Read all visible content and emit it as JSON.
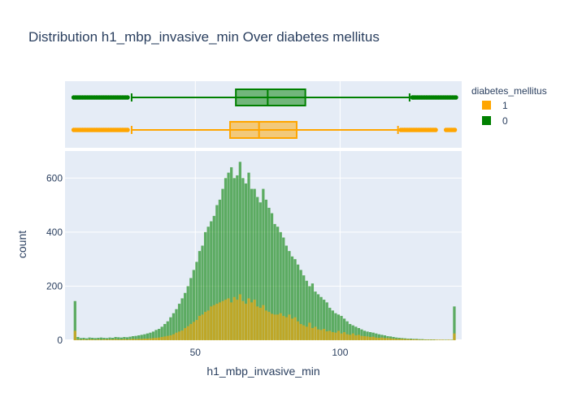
{
  "chart_data": {
    "type": "histogram",
    "title": "Distribution h1_mbp_invasive_min Over diabetes mellitus",
    "xlabel": "h1_mbp_invasive_min",
    "ylabel": "count",
    "xlim": [
      5,
      142
    ],
    "ylim": [
      0,
      700
    ],
    "x_ticks": [
      50,
      100
    ],
    "y_ticks": [
      0,
      200,
      400,
      600
    ],
    "barmode": "overlay",
    "legend": {
      "title": "diabetes_mellitus",
      "placement": "top-right"
    },
    "bin_start": 8,
    "bin_width": 1,
    "series": [
      {
        "name": "1",
        "color": "#FFA500",
        "values": [
          35,
          3,
          2,
          3,
          2,
          3,
          3,
          2,
          3,
          2,
          3,
          3,
          3,
          3,
          4,
          3,
          3,
          4,
          3,
          4,
          5,
          4,
          5,
          5,
          6,
          6,
          7,
          8,
          9,
          10,
          12,
          14,
          16,
          18,
          22,
          28,
          32,
          36,
          45,
          52,
          60,
          68,
          75,
          90,
          95,
          105,
          110,
          125,
          130,
          135,
          140,
          145,
          150,
          155,
          140,
          160,
          150,
          170,
          145,
          135,
          155,
          140,
          150,
          125,
          120,
          130,
          110,
          105,
          98,
          95,
          95,
          100,
          90,
          85,
          95,
          80,
          85,
          70,
          60,
          55,
          50,
          65,
          45,
          50,
          40,
          38,
          42,
          33,
          35,
          30,
          28,
          35,
          25,
          30,
          22,
          20,
          25,
          18,
          20,
          16,
          15,
          14,
          12,
          13,
          10,
          9,
          10,
          8,
          8,
          7,
          6,
          5,
          5,
          5,
          4,
          4,
          3,
          3,
          3,
          2,
          2,
          2,
          2,
          2,
          2,
          2,
          2,
          2,
          1,
          2,
          1,
          25
        ],
        "box": {
          "min": 28,
          "q1": 62,
          "median": 72,
          "q3": 85,
          "max": 120,
          "outliers_low": [
            8,
            27
          ],
          "outliers_high": [
            121,
            140
          ]
        }
      },
      {
        "name": "0",
        "color": "#008000",
        "values": [
          145,
          12,
          8,
          9,
          7,
          10,
          9,
          8,
          9,
          10,
          9,
          8,
          10,
          9,
          12,
          11,
          10,
          12,
          11,
          13,
          15,
          16,
          18,
          20,
          22,
          25,
          28,
          32,
          38,
          42,
          50,
          60,
          70,
          85,
          100,
          115,
          135,
          155,
          175,
          200,
          230,
          260,
          290,
          330,
          350,
          400,
          420,
          440,
          460,
          500,
          520,
          560,
          600,
          620,
          640,
          600,
          610,
          660,
          600,
          580,
          620,
          560,
          560,
          530,
          510,
          560,
          520,
          490,
          470,
          430,
          420,
          400,
          380,
          350,
          330,
          310,
          300,
          280,
          260,
          240,
          220,
          200,
          210,
          180,
          170,
          160,
          150,
          140,
          120,
          110,
          100,
          95,
          90,
          80,
          70,
          60,
          55,
          50,
          45,
          40,
          35,
          32,
          30,
          28,
          25,
          22,
          20,
          18,
          15,
          14,
          12,
          10,
          9,
          8,
          7,
          6,
          6,
          5,
          5,
          4,
          4,
          3,
          3,
          3,
          3,
          2,
          2,
          2,
          2,
          2,
          2,
          125
        ],
        "box": {
          "min": 28,
          "q1": 64,
          "median": 75,
          "q3": 88,
          "max": 124,
          "outliers_low": [
            8,
            27
          ],
          "outliers_high": [
            125,
            140
          ]
        }
      }
    ]
  }
}
